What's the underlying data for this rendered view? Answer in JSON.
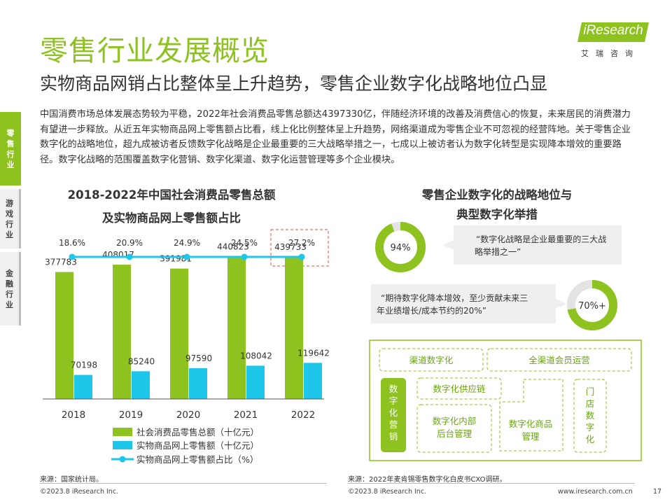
{
  "title": "零售行业发展概览",
  "subtitle": "实物商品网销占比整体呈上升趋势，零售企业数字化战略地位凸显",
  "logo": {
    "brand": "iResearch",
    "sub": "艾瑞咨询"
  },
  "intro": "中国消费市场总体发展态势较为平稳，2022年社会消费品零售总额达4397330亿，伴随经济环境的改善及消费信心的恢复，未来居民的消费潜力有望进一步释放。从近五年实物商品网上零售额占比看，线上化比例整体呈上升趋势，网络渠道成为零售企业不可忽视的经营阵地。关于零售企业数字化的战略地位，超九成被访者反馈数字化战略是企业最重要的三大战略举措之一，七成以上被访者认为数字化转型是实现降本增效的重要路径。数字化战略的范围覆盖数字化营销、数字化渠道、数字化运营管理等多个企业模块。",
  "sidebar": [
    {
      "label": "零售行业",
      "active": true
    },
    {
      "label": "游戏行业",
      "active": false
    },
    {
      "label": "金融行业",
      "active": false
    }
  ],
  "left_chart": {
    "title_line1": "2018-2022年中国社会消费品零售总额",
    "title_line2": "及实物商品网上零售额占比",
    "source": "来源：国家统计局。"
  },
  "chart_data": {
    "type": "bar",
    "categories": [
      "2018",
      "2019",
      "2020",
      "2021",
      "2022"
    ],
    "series": [
      {
        "name": "社会消费品零售总额（十亿元）",
        "values": [
          377783,
          408017,
          391981,
          440823,
          439733
        ],
        "color": "#8dc21f"
      },
      {
        "name": "实物商品网上零售额（十亿元）",
        "values": [
          70198,
          85240,
          97590,
          108042,
          119642
        ],
        "color": "#1ec6ea"
      },
      {
        "name": "实物商品网上零售额占比（%）",
        "values": [
          18.6,
          20.9,
          24.9,
          24.5,
          27.2
        ],
        "labels": [
          "18.6%",
          "20.9%",
          "24.9%",
          "24.5%",
          "27.2%"
        ],
        "type": "line",
        "color": "#1ec6ea"
      }
    ],
    "highlight_category": "2022"
  },
  "right_panel": {
    "title_line1": "零售企业数字化的战略地位与",
    "title_line2": "典型数字化举措",
    "stat1": {
      "value": "94%",
      "fraction": 0.94,
      "quote": "“数字化战略是企业最重要的三大战略举措之一”"
    },
    "stat2": {
      "value": "70%+",
      "fraction": 0.72,
      "quote": "“期待数字化降本增效，至少贡献未来三年业绩增长/成本节约的20%”"
    },
    "measures": {
      "channel": "渠道数字化",
      "omni_member": "全渠道会员运营",
      "marketing": "数字化营销",
      "supply_chain": "数字化供应链",
      "backoffice": "数字化内部后台管理",
      "merch": "数字化商品管理",
      "store": "门店数字化"
    },
    "source": "来源：2022年麦肯锡零售数字化白皮书CXO调研。"
  },
  "footer": {
    "copyright_left": "©2023.8 iResearch Inc.",
    "copyright_mid": "©2023.8 iResearch Inc.",
    "url": "www.iresearch.com.cn",
    "page": "17"
  },
  "colors": {
    "accent": "#8dc21f",
    "cyan": "#1ec6ea",
    "highlight": "#e74c3c"
  }
}
